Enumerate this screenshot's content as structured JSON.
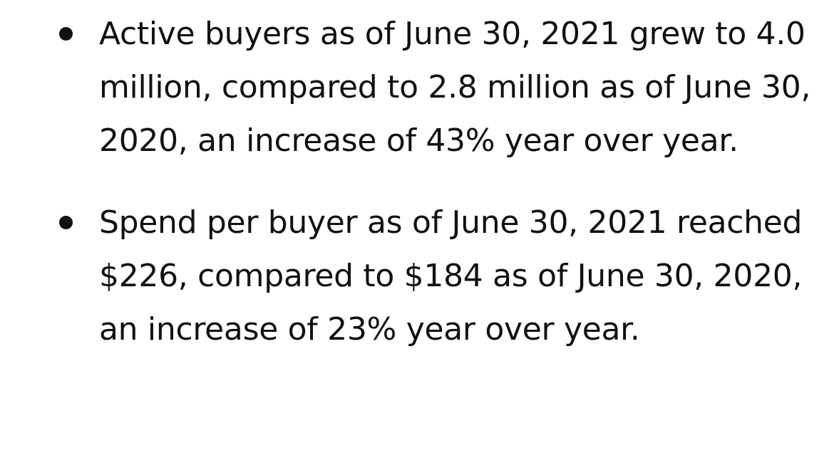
{
  "bullets": [
    {
      "text": "Active buyers as of June 30, 2021 grew to 4.0 million, compared to 2.8 million as of June 30, 2020, an increase of 43% year over year."
    },
    {
      "text": "Spend per buyer as of June 30, 2021 reached $226, compared to $184 as of June 30, 2020, an increase of 23% year over year."
    }
  ]
}
